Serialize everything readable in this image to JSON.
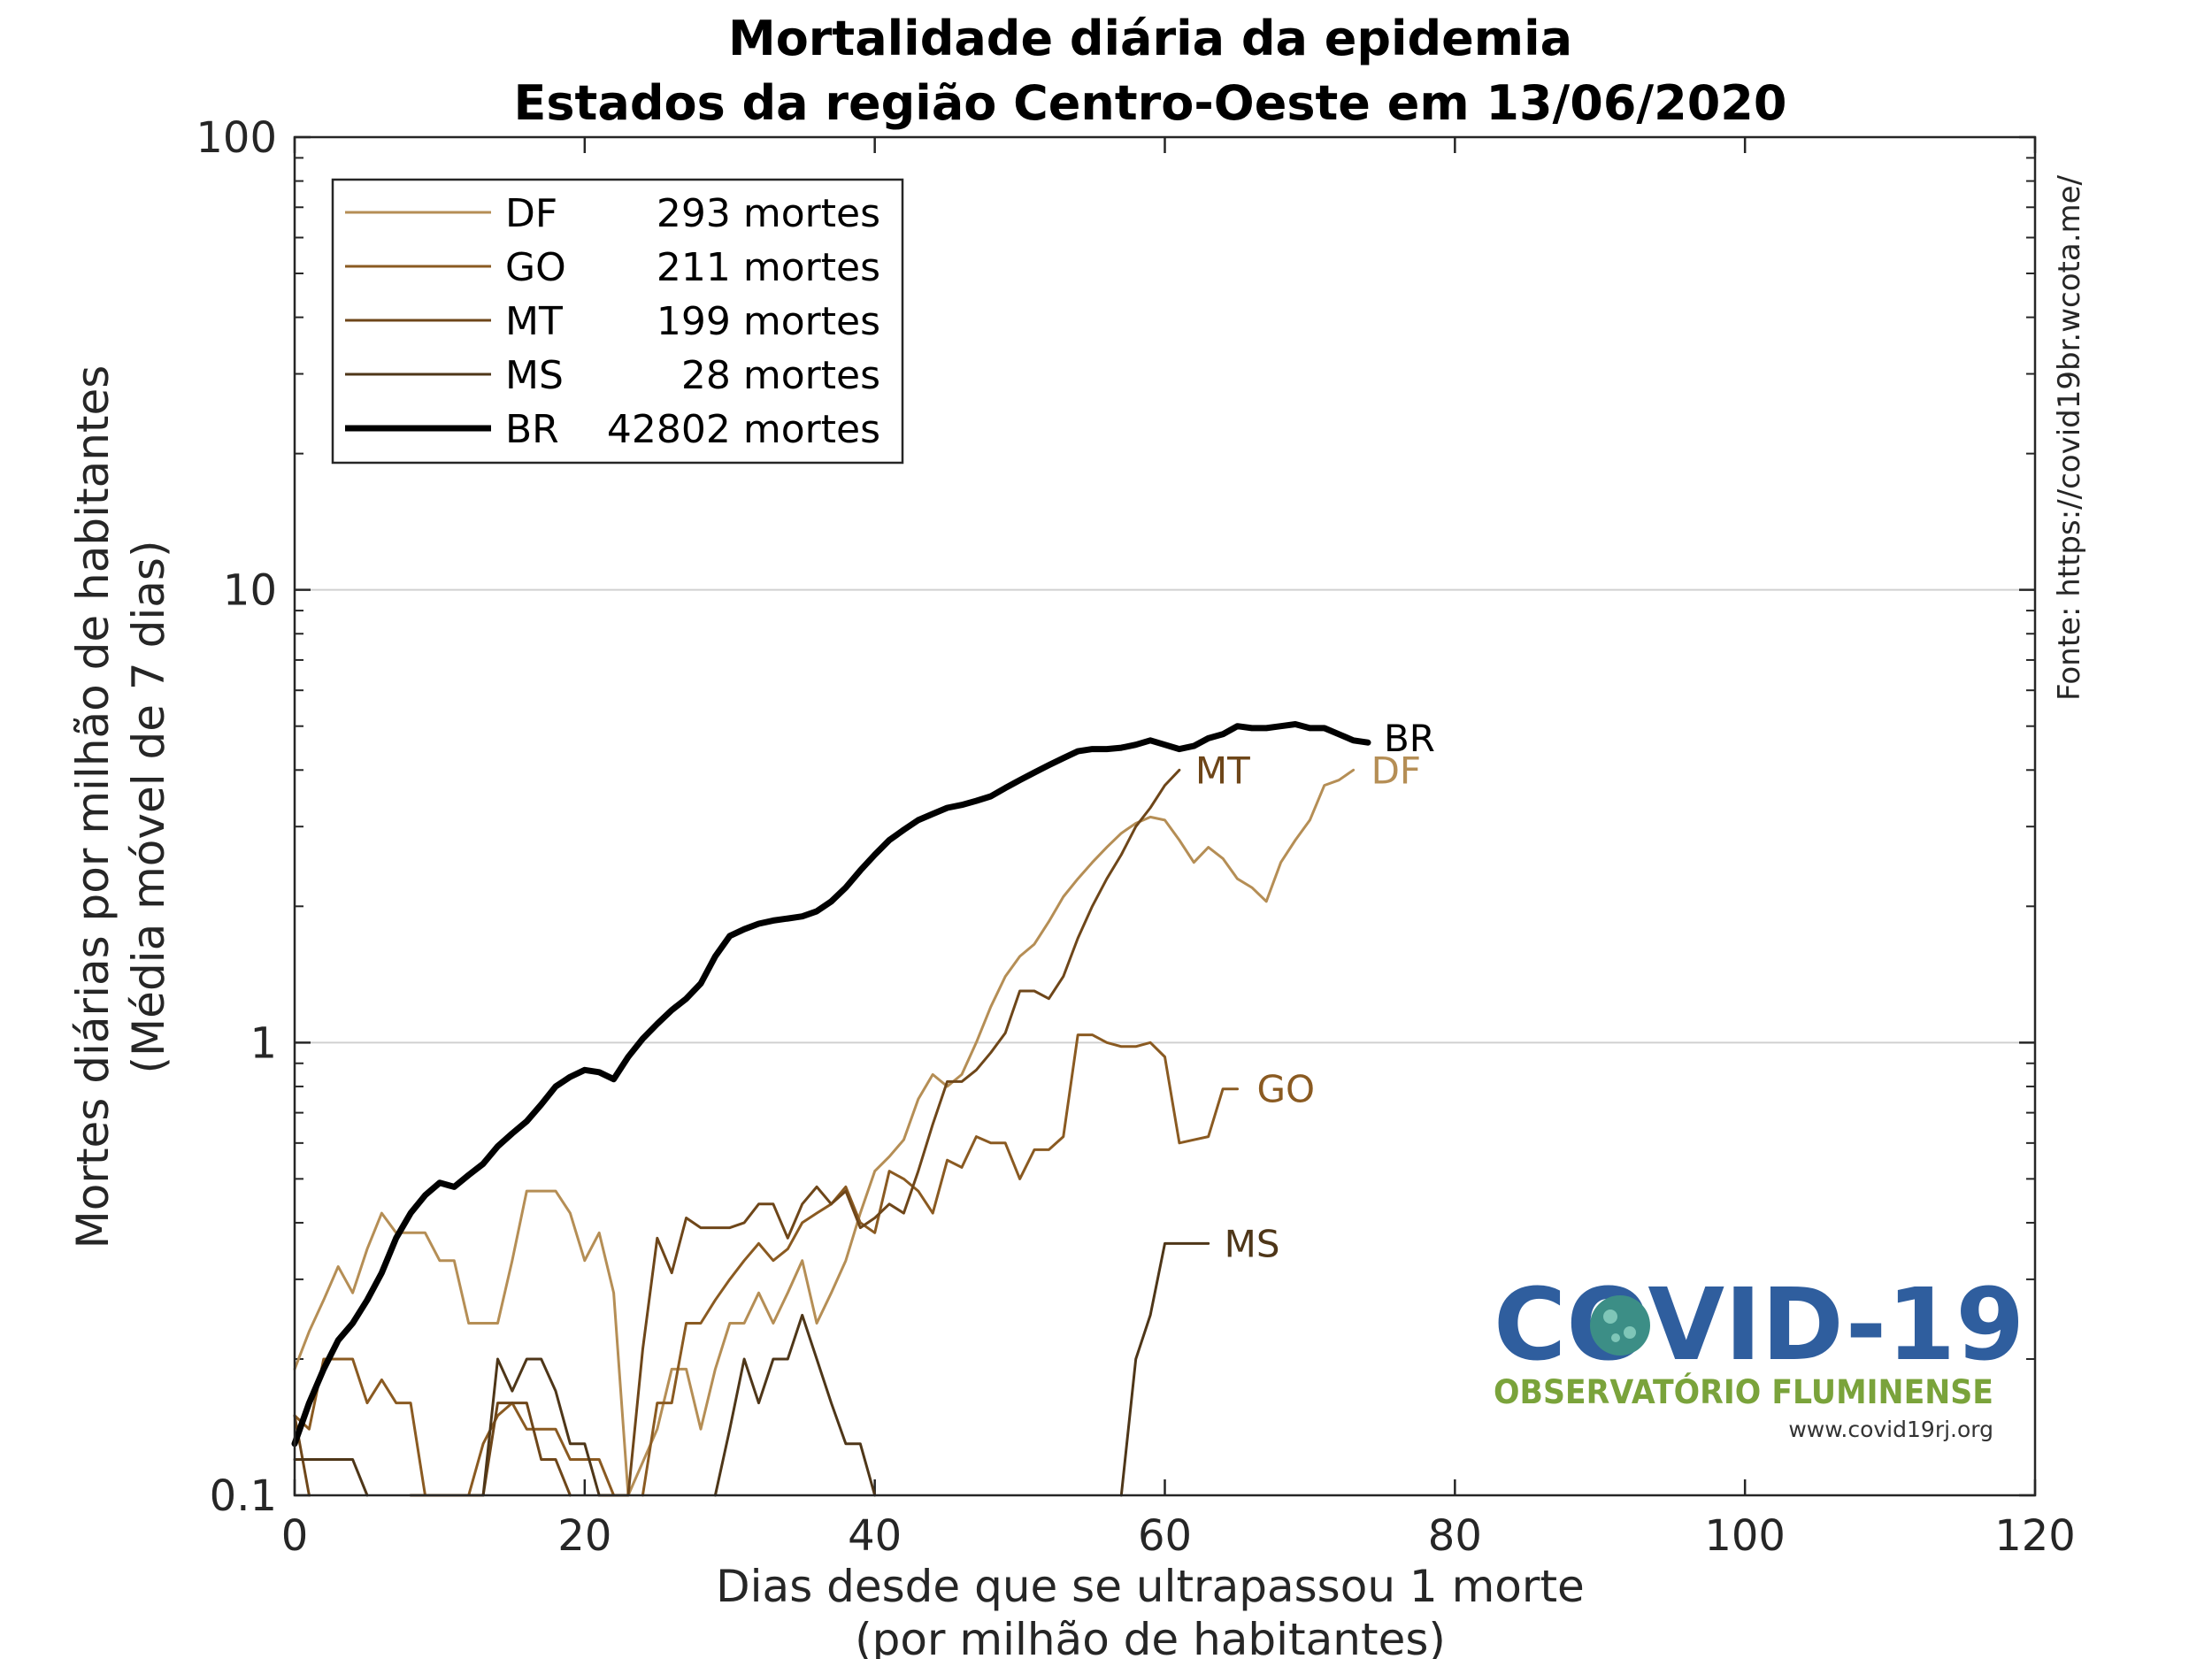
{
  "chart_data": {
    "type": "line",
    "title": "Mortalidade diária da epidemia",
    "subtitle": "Estados da região Centro-Oeste em 13/06/2020",
    "xlabel": "Dias desde que se ultrapassou 1 morte",
    "xlabel2": "(por milhão de habitantes)",
    "ylabel": "Mortes diárias por milhão de habitantes",
    "ylabel2": "(Média móvel de 7 dias)",
    "source": "Fonte: https://covid19br.wcota.me/",
    "xlim": [
      0,
      120
    ],
    "ylim": [
      0.1,
      100
    ],
    "yscale": "log",
    "xticks": [
      "0",
      "20",
      "40",
      "60",
      "80",
      "100",
      "120"
    ],
    "yticks": [
      "0.1",
      "1",
      "10",
      "100"
    ],
    "grid": "horizontal major",
    "legend_position": "top-left",
    "legend": [
      {
        "label": "DF",
        "value": "293 mortes"
      },
      {
        "label": "GO",
        "value": "211 mortes"
      },
      {
        "label": "MT",
        "value": "199 mortes"
      },
      {
        "label": "MS",
        "value": "28 mortes"
      },
      {
        "label": "BR",
        "value": "42802 mortes"
      }
    ],
    "series": [
      {
        "name": "DF",
        "color": "#B58E55",
        "width": 3,
        "end_label": "DF",
        "points": [
          [
            0,
            0.19
          ],
          [
            1,
            0.23
          ],
          [
            2,
            0.27
          ],
          [
            3,
            0.32
          ],
          [
            4,
            0.28
          ],
          [
            5,
            0.35
          ],
          [
            6,
            0.42
          ],
          [
            7,
            0.38
          ],
          [
            8,
            0.38
          ],
          [
            9,
            0.38
          ],
          [
            10,
            0.33
          ],
          [
            11,
            0.33
          ],
          [
            12,
            0.24
          ],
          [
            13,
            0.24
          ],
          [
            14,
            0.24
          ],
          [
            15,
            0.33
          ],
          [
            16,
            0.47
          ],
          [
            17,
            0.47
          ],
          [
            18,
            0.47
          ],
          [
            19,
            0.42
          ],
          [
            20,
            0.33
          ],
          [
            21,
            0.38
          ],
          [
            22,
            0.28
          ],
          [
            23,
            0.1
          ],
          [
            25,
            0.14
          ],
          [
            26,
            0.19
          ],
          [
            27,
            0.19
          ],
          [
            28,
            0.14
          ],
          [
            29,
            0.19
          ],
          [
            30,
            0.24
          ],
          [
            31,
            0.24
          ],
          [
            32,
            0.28
          ],
          [
            33,
            0.24
          ],
          [
            34,
            0.28
          ],
          [
            35,
            0.33
          ],
          [
            36,
            0.24
          ],
          [
            37,
            0.28
          ],
          [
            38,
            0.33
          ],
          [
            39,
            0.42
          ],
          [
            40,
            0.52
          ],
          [
            41,
            0.56
          ],
          [
            42,
            0.61
          ],
          [
            43,
            0.75
          ],
          [
            44,
            0.85
          ],
          [
            45,
            0.8
          ],
          [
            46,
            0.85
          ],
          [
            47,
            1.0
          ],
          [
            48,
            1.2
          ],
          [
            49,
            1.4
          ],
          [
            50,
            1.55
          ],
          [
            51,
            1.65
          ],
          [
            52,
            1.85
          ],
          [
            53,
            2.1
          ],
          [
            54,
            2.3
          ],
          [
            55,
            2.5
          ],
          [
            56,
            2.7
          ],
          [
            57,
            2.9
          ],
          [
            58,
            3.05
          ],
          [
            59,
            3.15
          ],
          [
            60,
            3.1
          ],
          [
            61,
            2.8
          ],
          [
            62,
            2.5
          ],
          [
            63,
            2.7
          ],
          [
            64,
            2.55
          ],
          [
            65,
            2.3
          ],
          [
            66,
            2.2
          ],
          [
            67,
            2.05
          ],
          [
            68,
            2.5
          ],
          [
            69,
            2.8
          ],
          [
            70,
            3.1
          ],
          [
            71,
            3.7
          ],
          [
            72,
            3.8
          ],
          [
            73,
            4.0
          ]
        ]
      },
      {
        "name": "GO",
        "color": "#8A5A21",
        "width": 3,
        "end_label": "GO",
        "points": [
          [
            0,
            0.15
          ],
          [
            1,
            0.14
          ],
          [
            2,
            0.2
          ],
          [
            3,
            0.2
          ],
          [
            4,
            0.2
          ],
          [
            5,
            0.16
          ],
          [
            6,
            0.18
          ],
          [
            7,
            0.16
          ],
          [
            8,
            0.16
          ],
          [
            9,
            0.1
          ],
          [
            11,
            0.1
          ],
          [
            12,
            0.1
          ],
          [
            13,
            0.13
          ],
          [
            14,
            0.15
          ],
          [
            15,
            0.16
          ],
          [
            16,
            0.14
          ],
          [
            17,
            0.14
          ],
          [
            18,
            0.14
          ],
          [
            19,
            0.12
          ],
          [
            20,
            0.12
          ],
          [
            21,
            0.12
          ],
          [
            22,
            0.1
          ],
          [
            24,
            0.1
          ],
          [
            25,
            0.16
          ],
          [
            26,
            0.16
          ],
          [
            27,
            0.24
          ],
          [
            28,
            0.24
          ],
          [
            29,
            0.27
          ],
          [
            30,
            0.3
          ],
          [
            31,
            0.33
          ],
          [
            32,
            0.36
          ],
          [
            33,
            0.33
          ],
          [
            34,
            0.35
          ],
          [
            35,
            0.4
          ],
          [
            36,
            0.42
          ],
          [
            37,
            0.44
          ],
          [
            38,
            0.48
          ],
          [
            39,
            0.4
          ],
          [
            40,
            0.38
          ],
          [
            41,
            0.52
          ],
          [
            42,
            0.5
          ],
          [
            43,
            0.47
          ],
          [
            44,
            0.42
          ],
          [
            45,
            0.55
          ],
          [
            46,
            0.53
          ],
          [
            47,
            0.62
          ],
          [
            48,
            0.6
          ],
          [
            49,
            0.6
          ],
          [
            50,
            0.5
          ],
          [
            51,
            0.58
          ],
          [
            52,
            0.58
          ],
          [
            53,
            0.62
          ],
          [
            54,
            1.04
          ],
          [
            55,
            1.04
          ],
          [
            56,
            1.0
          ],
          [
            57,
            0.98
          ],
          [
            58,
            0.98
          ],
          [
            59,
            1.0
          ],
          [
            60,
            0.93
          ],
          [
            61,
            0.6
          ],
          [
            62,
            0.61
          ],
          [
            63,
            0.62
          ],
          [
            64,
            0.79
          ],
          [
            65,
            0.79
          ]
        ]
      },
      {
        "name": "MT",
        "color": "#6E4619",
        "width": 3,
        "end_label": "MT",
        "points": [
          [
            0,
            0.15
          ],
          [
            1,
            0.1
          ],
          [
            3,
            0.1
          ],
          [
            8,
            0.1
          ],
          [
            9,
            0.1
          ],
          [
            10,
            0.1
          ],
          [
            11,
            0.1
          ],
          [
            12,
            0.1
          ],
          [
            13,
            0.1
          ],
          [
            14,
            0.16
          ],
          [
            15,
            0.16
          ],
          [
            16,
            0.16
          ],
          [
            17,
            0.12
          ],
          [
            18,
            0.12
          ],
          [
            19,
            0.1
          ],
          [
            21,
            0.1
          ],
          [
            22,
            0.1
          ],
          [
            23,
            0.1
          ],
          [
            24,
            0.21
          ],
          [
            25,
            0.37
          ],
          [
            26,
            0.31
          ],
          [
            27,
            0.41
          ],
          [
            28,
            0.39
          ],
          [
            29,
            0.39
          ],
          [
            30,
            0.39
          ],
          [
            31,
            0.4
          ],
          [
            32,
            0.44
          ],
          [
            33,
            0.44
          ],
          [
            34,
            0.37
          ],
          [
            35,
            0.44
          ],
          [
            36,
            0.48
          ],
          [
            37,
            0.44
          ],
          [
            38,
            0.47
          ],
          [
            39,
            0.39
          ],
          [
            40,
            0.41
          ],
          [
            41,
            0.44
          ],
          [
            42,
            0.42
          ],
          [
            43,
            0.52
          ],
          [
            44,
            0.66
          ],
          [
            45,
            0.82
          ],
          [
            46,
            0.82
          ],
          [
            47,
            0.87
          ],
          [
            48,
            0.95
          ],
          [
            49,
            1.05
          ],
          [
            50,
            1.3
          ],
          [
            51,
            1.3
          ],
          [
            52,
            1.25
          ],
          [
            53,
            1.4
          ],
          [
            54,
            1.7
          ],
          [
            55,
            2.0
          ],
          [
            56,
            2.3
          ],
          [
            57,
            2.6
          ],
          [
            58,
            3.0
          ],
          [
            59,
            3.3
          ],
          [
            60,
            3.7
          ],
          [
            61,
            4.0
          ]
        ]
      },
      {
        "name": "MS",
        "color": "#4E3618",
        "width": 3,
        "end_label": "MS",
        "points": [
          [
            0,
            0.12
          ],
          [
            1,
            0.12
          ],
          [
            2,
            0.12
          ],
          [
            3,
            0.12
          ],
          [
            4,
            0.12
          ],
          [
            5,
            0.1
          ],
          [
            13,
            0.1
          ],
          [
            14,
            0.2
          ],
          [
            15,
            0.17
          ],
          [
            16,
            0.2
          ],
          [
            17,
            0.2
          ],
          [
            18,
            0.17
          ],
          [
            19,
            0.13
          ],
          [
            20,
            0.13
          ],
          [
            21,
            0.1
          ],
          [
            29,
            0.1
          ],
          [
            30,
            0.14
          ],
          [
            31,
            0.2
          ],
          [
            32,
            0.16
          ],
          [
            33,
            0.2
          ],
          [
            34,
            0.2
          ],
          [
            35,
            0.25
          ],
          [
            36,
            0.2
          ],
          [
            37,
            0.16
          ],
          [
            38,
            0.13
          ],
          [
            39,
            0.13
          ],
          [
            40,
            0.1
          ],
          [
            57,
            0.1
          ],
          [
            58,
            0.2
          ],
          [
            59,
            0.25
          ],
          [
            60,
            0.36
          ],
          [
            61,
            0.36
          ],
          [
            62,
            0.36
          ],
          [
            63,
            0.36
          ]
        ]
      },
      {
        "name": "BR",
        "color": "#000000",
        "width": 7,
        "end_label": "BR",
        "points": [
          [
            0,
            0.13
          ],
          [
            1,
            0.16
          ],
          [
            2,
            0.19
          ],
          [
            3,
            0.22
          ],
          [
            4,
            0.24
          ],
          [
            5,
            0.27
          ],
          [
            6,
            0.31
          ],
          [
            7,
            0.37
          ],
          [
            8,
            0.42
          ],
          [
            9,
            0.46
          ],
          [
            10,
            0.49
          ],
          [
            11,
            0.48
          ],
          [
            12,
            0.51
          ],
          [
            13,
            0.54
          ],
          [
            14,
            0.59
          ],
          [
            15,
            0.63
          ],
          [
            16,
            0.67
          ],
          [
            17,
            0.73
          ],
          [
            18,
            0.8
          ],
          [
            19,
            0.84
          ],
          [
            20,
            0.87
          ],
          [
            21,
            0.86
          ],
          [
            22,
            0.83
          ],
          [
            23,
            0.93
          ],
          [
            24,
            1.02
          ],
          [
            25,
            1.1
          ],
          [
            26,
            1.18
          ],
          [
            27,
            1.25
          ],
          [
            28,
            1.35
          ],
          [
            29,
            1.55
          ],
          [
            30,
            1.72
          ],
          [
            31,
            1.78
          ],
          [
            32,
            1.83
          ],
          [
            33,
            1.86
          ],
          [
            34,
            1.88
          ],
          [
            35,
            1.9
          ],
          [
            36,
            1.95
          ],
          [
            37,
            2.05
          ],
          [
            38,
            2.2
          ],
          [
            39,
            2.4
          ],
          [
            40,
            2.6
          ],
          [
            41,
            2.8
          ],
          [
            42,
            2.95
          ],
          [
            43,
            3.1
          ],
          [
            44,
            3.2
          ],
          [
            45,
            3.3
          ],
          [
            46,
            3.35
          ],
          [
            47,
            3.42
          ],
          [
            48,
            3.5
          ],
          [
            49,
            3.65
          ],
          [
            50,
            3.8
          ],
          [
            51,
            3.95
          ],
          [
            52,
            4.1
          ],
          [
            53,
            4.25
          ],
          [
            54,
            4.4
          ],
          [
            55,
            4.45
          ],
          [
            56,
            4.45
          ],
          [
            57,
            4.48
          ],
          [
            58,
            4.55
          ],
          [
            59,
            4.65
          ],
          [
            60,
            4.55
          ],
          [
            61,
            4.45
          ],
          [
            62,
            4.52
          ],
          [
            63,
            4.7
          ],
          [
            64,
            4.8
          ],
          [
            65,
            5.0
          ],
          [
            66,
            4.95
          ],
          [
            67,
            4.95
          ],
          [
            68,
            5.0
          ],
          [
            69,
            5.05
          ],
          [
            70,
            4.95
          ],
          [
            71,
            4.95
          ],
          [
            72,
            4.8
          ],
          [
            73,
            4.65
          ],
          [
            74,
            4.6
          ]
        ]
      }
    ]
  },
  "logo": {
    "title": "COVID-19",
    "subtitle": "OBSERVATÓRIO FLUMINENSE",
    "url": "www.covid19rj.org"
  }
}
